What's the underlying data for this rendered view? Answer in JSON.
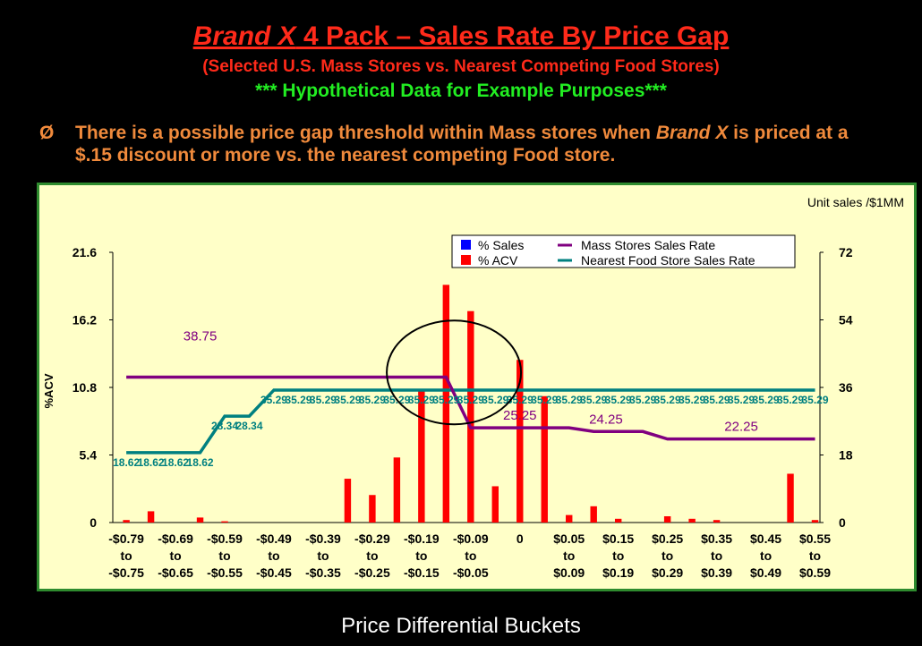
{
  "header": {
    "brand": "Brand X",
    "title_rest": " 4 Pack – Sales Rate By Price Gap",
    "subtitle": "(Selected U.S. Mass Stores vs. Nearest Competing Food Stores)",
    "note": "*** Hypothetical Data for Example Purposes***"
  },
  "bullet": {
    "symbol": "Ø",
    "text_before": "There is a possible price gap threshold within Mass stores when ",
    "brand": "Brand X",
    "text_after": " is priced at a $.15 discount or more vs. the nearest competing Food store."
  },
  "x_axis_title": "Price Differential Buckets",
  "colors": {
    "background": "#000000",
    "panel": "#ffffc8",
    "panel_border": "#2e8b2e",
    "pct_sales": "#0000ff",
    "pct_acv": "#ff0000",
    "mass_line": "#800080",
    "food_line": "#008080",
    "title_red": "#ff2a1a",
    "note_green": "#22ee22",
    "bullet_orange": "#f08a3c"
  },
  "chart_data": {
    "type": "bar",
    "y_left_label": "%ACV",
    "y_left_ticks": [
      "21.6",
      "16.2",
      "10.8",
      "5.4",
      "0"
    ],
    "y_left_range": [
      0,
      21.6
    ],
    "y_right_label": "Unit sales /$1MM",
    "y_right_ticks": [
      "72",
      "54",
      "36",
      "18",
      "0"
    ],
    "y_right_range": [
      0,
      72
    ],
    "category_labels": [
      [
        "-$0.79",
        "to",
        "-$0.75"
      ],
      [
        "-$0.69",
        "to",
        "-$0.65"
      ],
      [
        "-$0.59",
        "to",
        "-$0.55"
      ],
      [
        "-$0.49",
        "to",
        "-$0.45"
      ],
      [
        "-$0.39",
        "to",
        "-$0.35"
      ],
      [
        "-$0.29",
        "to",
        "-$0.25"
      ],
      [
        "-$0.19",
        "to",
        "-$0.15"
      ],
      [
        "-$0.09",
        "to",
        "-$0.05"
      ],
      [
        "0"
      ],
      [
        "$0.05",
        "to",
        "$0.09"
      ],
      [
        "$0.15",
        "to",
        "$0.19"
      ],
      [
        "$0.25",
        "to",
        "$0.29"
      ],
      [
        "$0.35",
        "to",
        "$0.39"
      ],
      [
        "$0.45",
        "to",
        "$0.49"
      ],
      [
        "$0.55",
        "to",
        "$0.59"
      ]
    ],
    "n_points": 29,
    "legend": [
      "% Sales",
      "% ACV",
      "Mass Stores Sales Rate",
      "Nearest Food Store Sales Rate"
    ],
    "legend_position": "top-right",
    "series": [
      {
        "name": "% ACV",
        "type": "bar",
        "axis": "left",
        "values": [
          0.2,
          0.9,
          0,
          0.4,
          0.1,
          0,
          0,
          0,
          0,
          3.5,
          2.2,
          5.2,
          10.5,
          19.0,
          16.9,
          2.9,
          13.0,
          10.1,
          0.6,
          1.3,
          0.3,
          0,
          0.5,
          0.3,
          0.2,
          0,
          0,
          3.9,
          0.2
        ]
      },
      {
        "name": "% Sales",
        "type": "bar",
        "axis": "left",
        "values": [
          0,
          0,
          0,
          0,
          0,
          0,
          0,
          0,
          0,
          0,
          0,
          0,
          0,
          0,
          0,
          0,
          0,
          0,
          0,
          0,
          0,
          0,
          0,
          0,
          0,
          0,
          0,
          0,
          0
        ]
      },
      {
        "name": "Mass Stores Sales Rate",
        "type": "line",
        "axis": "right",
        "values": [
          38.75,
          38.75,
          38.75,
          38.75,
          38.75,
          38.75,
          38.75,
          38.75,
          38.75,
          38.75,
          38.75,
          38.75,
          38.75,
          38.75,
          25.25,
          25.25,
          25.25,
          25.25,
          25.25,
          24.25,
          24.25,
          24.25,
          22.25,
          22.25,
          22.25,
          22.25,
          22.25,
          22.25,
          22.25
        ],
        "labels": [
          {
            "index": 3,
            "text": "38.75"
          },
          {
            "index": 16,
            "text": "25.25"
          },
          {
            "index": 19.5,
            "text": "24.25"
          },
          {
            "index": 25,
            "text": "22.25"
          }
        ]
      },
      {
        "name": "Nearest Food Store Sales Rate",
        "type": "line",
        "axis": "right",
        "values": [
          18.62,
          18.62,
          18.62,
          18.62,
          28.34,
          28.34,
          35.29,
          35.29,
          35.29,
          35.29,
          35.29,
          35.29,
          35.29,
          35.29,
          35.29,
          35.29,
          35.29,
          35.29,
          35.29,
          35.29,
          35.29,
          35.29,
          35.29,
          35.29,
          35.29,
          35.29,
          35.29,
          35.29,
          35.29
        ],
        "labels": [
          "18.62",
          "18.62",
          "18.62",
          "18.62",
          "28.34",
          "28.34",
          "35.29",
          "35.29",
          "35.29",
          "35.29",
          "35.29",
          "35.29",
          "35.29",
          "35.29",
          "35.29",
          "35.29",
          "35.29",
          "35.29",
          "35.29",
          "35.29",
          "35.29",
          "35.29",
          "35.29",
          "35.29",
          "35.29",
          "35.29",
          "35.29",
          "35.29",
          "35.29"
        ]
      }
    ],
    "highlight_circle_index": 13.5
  }
}
